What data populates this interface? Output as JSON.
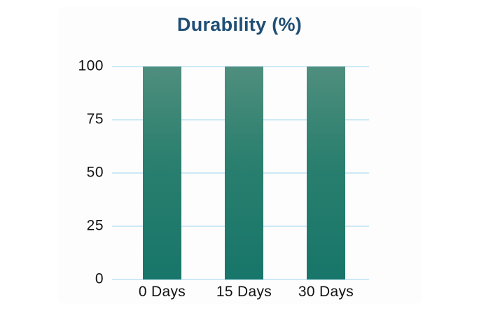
{
  "chart_data": {
    "type": "bar",
    "title": "Durability (%)",
    "categories": [
      "0 Days",
      "15 Days",
      "30 Days"
    ],
    "values": [
      100,
      100,
      100
    ],
    "xlabel": "",
    "ylabel": "",
    "ylim": [
      0,
      100
    ],
    "yticks": [
      0,
      25,
      50,
      75,
      100
    ],
    "grid": true,
    "legend_position": "none",
    "colors": {
      "bar_top": "#4f8e7e",
      "bar_mid": "#2a7f6e",
      "bar_bottom": "#17766a",
      "gridline": "#cde9f7",
      "title_text": "#204e74",
      "axis_text": "#121212",
      "background": "#ffffff"
    }
  }
}
